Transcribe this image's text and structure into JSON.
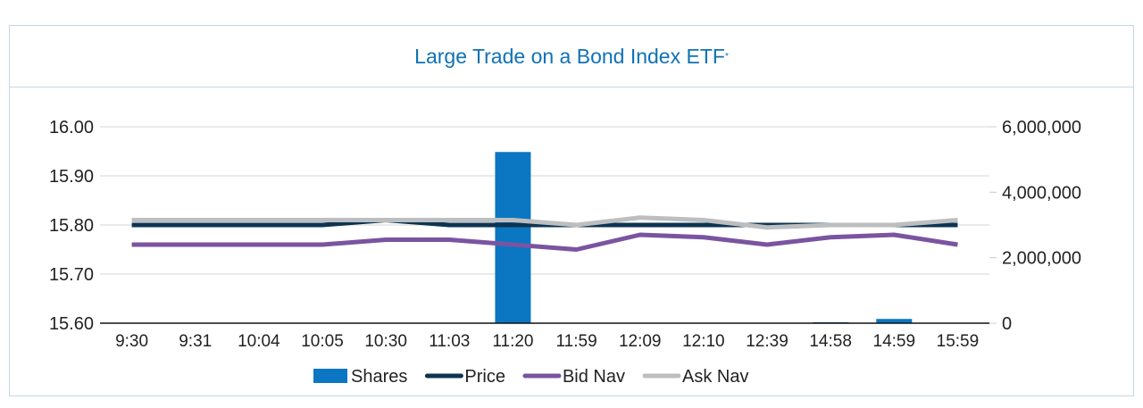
{
  "chart_data": {
    "type": "bar+line",
    "title": "Large Trade on a Bond Index ETF",
    "title_mark": "*",
    "categories": [
      "9:30",
      "9:31",
      "10:04",
      "10:05",
      "10:30",
      "11:03",
      "11:20",
      "11:59",
      "12:09",
      "12:10",
      "12:39",
      "14:58",
      "14:59",
      "15:59"
    ],
    "left_axis": {
      "ylim": [
        15.6,
        16.0
      ],
      "ticks": [
        "15.60",
        "15.70",
        "15.80",
        "15.90",
        "16.00"
      ]
    },
    "right_axis": {
      "ylim": [
        0,
        6000000
      ],
      "ticks": [
        "0",
        "2,000,000",
        "4,000,000",
        "6,000,000"
      ]
    },
    "grid": true,
    "legend_placement": "bottom",
    "series": [
      {
        "name": "Shares",
        "type": "bar",
        "axis": "right",
        "color": "#0b77c2",
        "values": [
          0,
          0,
          0,
          0,
          0,
          0,
          5230000,
          0,
          0,
          0,
          0,
          30000,
          130000,
          0
        ]
      },
      {
        "name": "Price",
        "type": "line",
        "axis": "left",
        "color": "#0d3452",
        "values": [
          15.8,
          15.8,
          15.8,
          15.8,
          15.81,
          15.8,
          15.8,
          15.8,
          15.8,
          15.8,
          15.8,
          15.8,
          15.8,
          15.8
        ]
      },
      {
        "name": "Bid Nav",
        "type": "line",
        "axis": "left",
        "color": "#7a54a0",
        "values": [
          15.76,
          15.76,
          15.76,
          15.76,
          15.77,
          15.77,
          15.76,
          15.75,
          15.78,
          15.775,
          15.76,
          15.775,
          15.78,
          15.76
        ]
      },
      {
        "name": "Ask Nav",
        "type": "line",
        "axis": "left",
        "color": "#bcbec0",
        "values": [
          15.81,
          15.81,
          15.81,
          15.81,
          15.81,
          15.81,
          15.81,
          15.8,
          15.815,
          15.81,
          15.795,
          15.8,
          15.8,
          15.81
        ]
      }
    ]
  }
}
